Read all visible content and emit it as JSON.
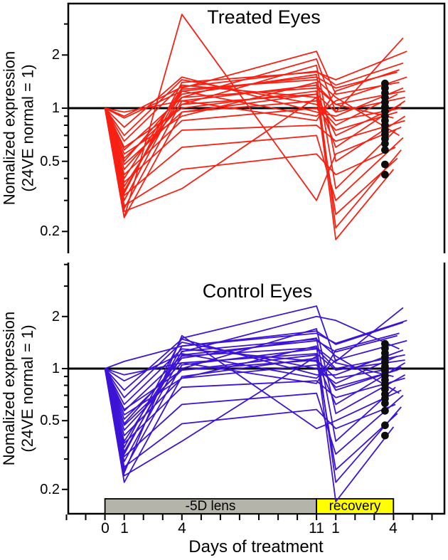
{
  "figure": {
    "y_axis_label_line1": "Nomalized expression",
    "y_axis_label_line2": "(24VE normal = 1)",
    "background_color": "#ffffff",
    "frame_color": "#000000",
    "dot_color": "#0d0d0d"
  },
  "chart_data": {
    "type": "line",
    "x_axis": {
      "label": "Days of treatment",
      "note": "x in days; days 12-15 on the shared axis are recovery days 1-4",
      "tick_positions_days": [
        -2,
        -1,
        0,
        1,
        2,
        3,
        4,
        5,
        6,
        7,
        8,
        9,
        10,
        11,
        12,
        13,
        14,
        15,
        16,
        17
      ],
      "tick_labels": [
        {
          "day": 0,
          "text": "0"
        },
        {
          "day": 1,
          "text": "1"
        },
        {
          "day": 4,
          "text": "4"
        },
        {
          "day": 11,
          "text": "11"
        },
        {
          "day": 12,
          "text": "1"
        },
        {
          "day": 15,
          "text": "4"
        }
      ],
      "phase_bars": [
        {
          "label": "-5D lens",
          "from_day": 0,
          "to_day": 11,
          "color": "#b4b4aa"
        },
        {
          "label": "recovery",
          "from_day": 11,
          "to_day": 15,
          "color": "#ffff00"
        }
      ]
    },
    "y_axis": {
      "scale": "log10",
      "ylim_top_panel": [
        0.148,
        3.8
      ],
      "ylim_bottom_panel": [
        0.144,
        4.1
      ]
    },
    "panels": [
      {
        "title": "Treated Eyes",
        "line_color": "#f82012",
        "reference_value": 1,
        "y_ticks_major": [
          {
            "value": 2,
            "text": "2"
          },
          {
            "value": 1,
            "text": "1"
          },
          {
            "value": 0.5,
            "text": "0.5"
          },
          {
            "value": 0.2,
            "text": "0.2"
          }
        ],
        "y_ticks_minor": [
          3,
          0.9,
          0.8,
          0.7,
          0.6,
          0.4,
          0.3
        ],
        "series": [
          {
            "t": [
              0,
              1,
              4,
              11,
              12,
              15.4
            ],
            "v": [
              1,
              0.24,
              0.95,
              1.2,
              0.7,
              1.05
            ]
          },
          {
            "t": [
              0,
              1,
              4,
              11,
              12,
              15.6
            ],
            "v": [
              1,
              0.27,
              1.1,
              1.35,
              1.05,
              1.25
            ]
          },
          {
            "t": [
              0,
              1,
              4,
              11,
              12,
              15.2
            ],
            "v": [
              1,
              0.3,
              1.25,
              1.5,
              1.3,
              1.6
            ]
          },
          {
            "t": [
              0,
              1,
              4,
              11,
              12,
              15.7
            ],
            "v": [
              1,
              0.33,
              1.4,
              1.6,
              1.45,
              2.1
            ]
          },
          {
            "t": [
              0,
              1,
              4,
              11,
              12,
              15.5
            ],
            "v": [
              1,
              0.36,
              1.15,
              1.9,
              0.95,
              2.5
            ]
          },
          {
            "t": [
              0,
              1,
              4,
              11,
              12,
              15.3
            ],
            "v": [
              1,
              0.4,
              1.3,
              2.1,
              1.2,
              1.4
            ]
          },
          {
            "t": [
              0,
              1,
              4,
              11,
              12,
              15.6
            ],
            "v": [
              1,
              0.45,
              1.05,
              1.75,
              0.5,
              0.9
            ]
          },
          {
            "t": [
              0,
              1,
              4,
              11,
              12,
              15.1
            ],
            "v": [
              1,
              0.5,
              1.2,
              1.55,
              0.35,
              0.75
            ]
          },
          {
            "t": [
              0,
              1,
              4,
              11,
              12,
              15.4
            ],
            "v": [
              1,
              0.55,
              0.9,
              1.4,
              0.21,
              0.58
            ]
          },
          {
            "t": [
              0,
              1,
              4,
              11,
              12,
              15.0
            ],
            "v": [
              1,
              0.6,
              1.0,
              1.25,
              0.18,
              0.45
            ]
          },
          {
            "t": [
              0,
              1,
              4,
              11,
              12,
              15.6
            ],
            "v": [
              1,
              0.65,
              1.35,
              1.15,
              0.6,
              1.1
            ]
          },
          {
            "t": [
              0,
              1,
              4,
              11,
              12,
              15.2
            ],
            "v": [
              1,
              0.7,
              1.45,
              1.05,
              0.8,
              1.2
            ]
          },
          {
            "t": [
              0,
              1,
              4,
              11,
              12,
              15.5
            ],
            "v": [
              1,
              0.78,
              1.5,
              0.95,
              0.9,
              1.3
            ]
          },
          {
            "t": [
              0,
              1,
              4,
              11,
              12,
              15.7
            ],
            "v": [
              1,
              0.88,
              1.25,
              0.9,
              1.1,
              1.5
            ]
          },
          {
            "t": [
              0,
              1,
              4,
              11,
              12,
              15.3
            ],
            "v": [
              1,
              0.95,
              1.1,
              0.85,
              1.25,
              1.65
            ]
          },
          {
            "t": [
              0,
              1,
              4,
              11,
              12,
              15.4
            ],
            "v": [
              1,
              0.24,
              3.4,
              0.3,
              0.55,
              0.78
            ]
          },
          {
            "t": [
              0,
              1,
              4,
              11,
              12,
              15.1
            ],
            "v": [
              1,
              0.28,
              0.45,
              0.55,
              0.42,
              0.6
            ]
          },
          {
            "t": [
              0,
              1,
              4,
              11,
              12,
              15.5
            ],
            "v": [
              1,
              0.32,
              0.6,
              0.7,
              0.3,
              0.68
            ]
          },
          {
            "t": [
              0,
              1,
              4,
              11,
              12,
              15.6
            ],
            "v": [
              1,
              0.38,
              0.75,
              0.8,
              0.65,
              0.85
            ]
          },
          {
            "t": [
              0,
              1,
              4,
              11,
              12,
              15.2
            ],
            "v": [
              1,
              0.42,
              0.85,
              1.0,
              0.75,
              0.95
            ]
          },
          {
            "t": [
              0,
              1,
              4,
              11,
              12,
              15.4
            ],
            "v": [
              1,
              0.48,
              0.95,
              1.1,
              0.85,
              1.0
            ]
          },
          {
            "t": [
              0,
              1,
              4,
              11,
              12,
              15.6
            ],
            "v": [
              1,
              0.52,
              1.05,
              1.2,
              0.95,
              1.15
            ]
          },
          {
            "t": [
              0,
              1,
              4,
              11,
              12,
              15.0
            ],
            "v": [
              1,
              0.58,
              1.15,
              1.3,
              1.05,
              0.88
            ]
          },
          {
            "t": [
              0,
              1,
              4,
              11,
              12,
              15.3
            ],
            "v": [
              1,
              0.34,
              1.28,
              1.45,
              1.15,
              0.7
            ]
          },
          {
            "t": [
              0,
              1,
              4,
              11,
              12,
              15.5
            ],
            "v": [
              1,
              0.9,
              1.32,
              1.62,
              1.35,
              1.8
            ]
          },
          {
            "t": [
              0,
              1,
              4,
              11,
              12,
              15.2
            ],
            "v": [
              1,
              0.26,
              0.35,
              1.15,
              0.25,
              0.52
            ]
          }
        ],
        "end_dots": {
          "day": 14.56,
          "values": [
            1.38,
            1.3,
            1.22,
            1.15,
            1.08,
            1.02,
            0.96,
            0.9,
            0.85,
            0.8,
            0.75,
            0.71,
            0.67,
            0.63,
            0.58,
            0.48,
            0.42
          ]
        }
      },
      {
        "title": "Control Eyes",
        "line_color": "#3d13d6",
        "reference_value": 1,
        "y_ticks_major": [
          {
            "value": 2,
            "text": "2"
          },
          {
            "value": 1,
            "text": "1"
          },
          {
            "value": 0.5,
            "text": "0.5"
          },
          {
            "value": 0.2,
            "text": "0.2"
          }
        ],
        "y_ticks_minor": [
          4,
          3,
          0.9,
          0.8,
          0.7,
          0.6,
          0.4,
          0.3
        ],
        "series": [
          {
            "t": [
              0,
              1,
              4,
              11,
              12,
              15.4
            ],
            "v": [
              1,
              0.22,
              0.9,
              1.15,
              0.75,
              1.0
            ]
          },
          {
            "t": [
              0,
              1,
              4,
              11,
              12,
              15.6
            ],
            "v": [
              1,
              0.26,
              1.05,
              1.3,
              1.0,
              1.2
            ]
          },
          {
            "t": [
              0,
              1,
              4,
              11,
              12,
              15.2
            ],
            "v": [
              1,
              0.29,
              1.2,
              1.45,
              1.25,
              1.55
            ]
          },
          {
            "t": [
              0,
              1,
              4,
              11,
              12,
              15.7
            ],
            "v": [
              1,
              0.32,
              1.35,
              1.6,
              1.4,
              1.9
            ]
          },
          {
            "t": [
              0,
              1,
              4,
              11,
              12,
              15.5
            ],
            "v": [
              1,
              0.35,
              1.5,
              2.3,
              1.1,
              2.25
            ]
          },
          {
            "t": [
              0,
              1,
              4,
              11,
              12,
              15.3
            ],
            "v": [
              1,
              0.38,
              1.25,
              2.0,
              1.9,
              1.3
            ]
          },
          {
            "t": [
              0,
              1,
              4,
              11,
              12,
              15.6
            ],
            "v": [
              1,
              0.44,
              1.0,
              1.7,
              0.55,
              0.92
            ]
          },
          {
            "t": [
              0,
              1,
              4,
              11,
              12,
              15.1
            ],
            "v": [
              1,
              0.48,
              1.15,
              1.5,
              0.38,
              0.78
            ]
          },
          {
            "t": [
              0,
              1,
              4,
              11,
              12,
              15.4
            ],
            "v": [
              1,
              0.54,
              0.88,
              1.35,
              0.22,
              0.6
            ]
          },
          {
            "t": [
              0,
              1,
              4,
              11,
              12,
              15.0
            ],
            "v": [
              1,
              0.58,
              0.98,
              1.2,
              0.17,
              0.46
            ]
          },
          {
            "t": [
              0,
              1,
              4,
              11,
              12,
              15.6
            ],
            "v": [
              1,
              0.62,
              1.3,
              1.1,
              0.62,
              1.08
            ]
          },
          {
            "t": [
              0,
              1,
              4,
              11,
              12,
              15.2
            ],
            "v": [
              1,
              0.68,
              1.42,
              1.0,
              0.82,
              1.18
            ]
          },
          {
            "t": [
              0,
              1,
              4,
              11,
              12,
              15.5
            ],
            "v": [
              1,
              0.75,
              1.48,
              0.92,
              0.92,
              1.28
            ]
          },
          {
            "t": [
              0,
              1,
              4,
              11,
              12,
              15.7
            ],
            "v": [
              1,
              0.85,
              1.22,
              0.88,
              1.12,
              1.45
            ]
          },
          {
            "t": [
              0,
              1,
              4,
              11,
              12,
              15.3
            ],
            "v": [
              1,
              0.92,
              1.08,
              0.82,
              1.28,
              1.6
            ]
          },
          {
            "t": [
              0,
              1,
              4,
              11,
              12,
              15.4
            ],
            "v": [
              1,
              0.25,
              1.55,
              0.45,
              0.5,
              0.75
            ]
          },
          {
            "t": [
              0,
              1,
              4,
              11,
              12,
              15.1
            ],
            "v": [
              1,
              0.27,
              0.48,
              0.58,
              0.45,
              0.62
            ]
          },
          {
            "t": [
              0,
              1,
              4,
              11,
              12,
              15.5
            ],
            "v": [
              1,
              0.31,
              0.62,
              0.72,
              0.32,
              0.7
            ]
          },
          {
            "t": [
              0,
              1,
              4,
              11,
              12,
              15.6
            ],
            "v": [
              1,
              0.37,
              0.78,
              0.85,
              0.68,
              0.88
            ]
          },
          {
            "t": [
              0,
              1,
              4,
              11,
              12,
              15.2
            ],
            "v": [
              1,
              0.41,
              0.88,
              1.05,
              0.78,
              0.98
            ]
          },
          {
            "t": [
              0,
              1,
              4,
              11,
              12,
              15.4
            ],
            "v": [
              1,
              0.47,
              0.98,
              1.12,
              0.88,
              1.02
            ]
          },
          {
            "t": [
              0,
              1,
              4,
              11,
              12,
              15.6
            ],
            "v": [
              1,
              0.51,
              1.08,
              1.22,
              0.98,
              1.12
            ]
          },
          {
            "t": [
              0,
              1,
              4,
              11,
              12,
              15.0
            ],
            "v": [
              1,
              0.57,
              1.18,
              1.32,
              1.08,
              0.9
            ]
          },
          {
            "t": [
              0,
              1,
              4,
              11,
              12,
              15.3
            ],
            "v": [
              1,
              0.33,
              1.26,
              1.48,
              1.18,
              0.72
            ]
          },
          {
            "t": [
              0,
              1,
              4,
              11,
              12,
              15.5
            ],
            "v": [
              1,
              1.1,
              1.35,
              1.65,
              1.38,
              1.85
            ]
          },
          {
            "t": [
              0,
              1,
              4,
              11,
              12,
              15.2
            ],
            "v": [
              1,
              0.24,
              0.38,
              1.18,
              0.26,
              0.55
            ]
          }
        ],
        "end_dots": {
          "day": 14.56,
          "values": [
            1.39,
            1.31,
            1.23,
            1.16,
            1.09,
            1.03,
            0.97,
            0.91,
            0.86,
            0.81,
            0.76,
            0.71,
            0.67,
            0.63,
            0.57,
            0.47,
            0.41
          ]
        }
      }
    ]
  }
}
